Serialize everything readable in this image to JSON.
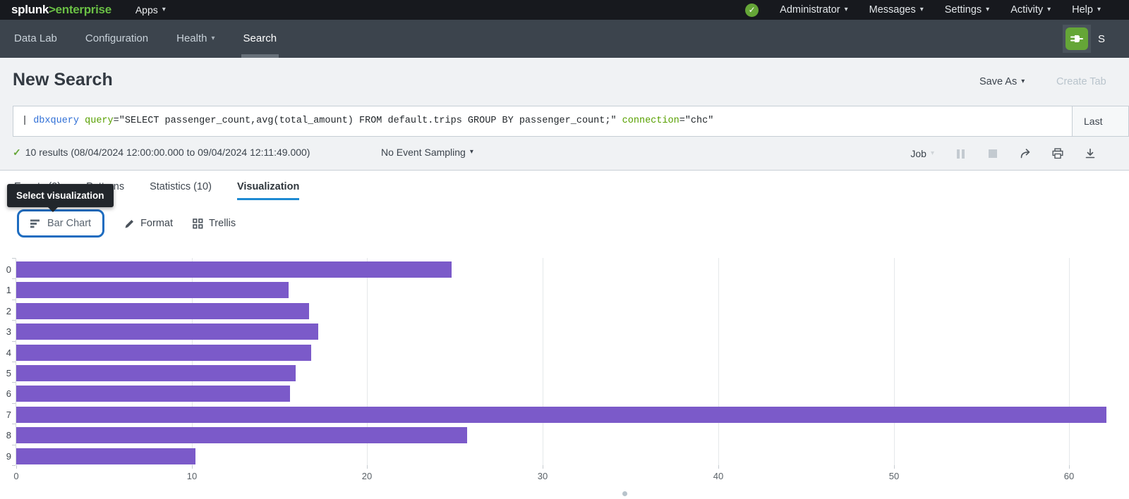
{
  "glyphs": {
    "caret": "▾",
    "check": "✓"
  },
  "colors": {
    "accent_green": "#65a637",
    "logo_green": "#6abf45",
    "focus_blue": "#1d6cc0",
    "tab_underline_blue": "#1e8ad2",
    "bar_purple": "#7b5ac9"
  },
  "topbar": {
    "logo_splunk": "splunk",
    "logo_gt": ">",
    "logo_enterprise": "enterprise",
    "apps": "Apps",
    "menus": [
      "Administrator",
      "Messages",
      "Settings",
      "Activity",
      "Help"
    ]
  },
  "appbar": {
    "nav": [
      "Data Lab",
      "Configuration",
      "Health",
      "Search"
    ],
    "app_name_partial": "S"
  },
  "header": {
    "title": "New Search",
    "save_as": "Save As",
    "create_table": "Create Tab"
  },
  "searchbar": {
    "segments": [
      {
        "t": "| ",
        "c": "plain"
      },
      {
        "t": "dbxquery",
        "c": "command"
      },
      {
        "t": " ",
        "c": "plain"
      },
      {
        "t": "query",
        "c": "keyword"
      },
      {
        "t": "=\"SELECT passenger_count,avg(total_amount) FROM default.trips GROUP BY passenger_count;\"",
        "c": "plain"
      },
      {
        "t": " ",
        "c": "plain"
      },
      {
        "t": "connection",
        "c": "keyword"
      },
      {
        "t": "=\"chc\"",
        "c": "plain"
      }
    ],
    "time_range_partial": "Last"
  },
  "jobbar": {
    "results_text": "10 results (08/04/2024 12:00:00.000 to 09/04/2024 12:11:49.000)",
    "sampling": "No Event Sampling",
    "job": "Job"
  },
  "tabs": [
    "Events (0)",
    "Patterns",
    "Statistics (10)",
    "Visualization"
  ],
  "tooltip": "Select visualization",
  "viz_toolbar": {
    "chart_type": "Bar Chart",
    "format": "Format",
    "trellis": "Trellis"
  },
  "chart_data": {
    "type": "bar",
    "orientation": "horizontal",
    "title": "",
    "xlabel": "",
    "ylabel": "",
    "categories": [
      "0",
      "1",
      "2",
      "3",
      "4",
      "5",
      "6",
      "7",
      "8",
      "9"
    ],
    "values": [
      24.8,
      15.5,
      16.7,
      17.2,
      16.8,
      15.9,
      15.6,
      62.1,
      25.7,
      10.2
    ],
    "x_ticks": [
      0,
      10,
      20,
      30,
      40,
      50,
      60
    ],
    "xlim": [
      0,
      63.4
    ],
    "grid": true,
    "legend": false,
    "bar_color": "#7b5ac9"
  }
}
